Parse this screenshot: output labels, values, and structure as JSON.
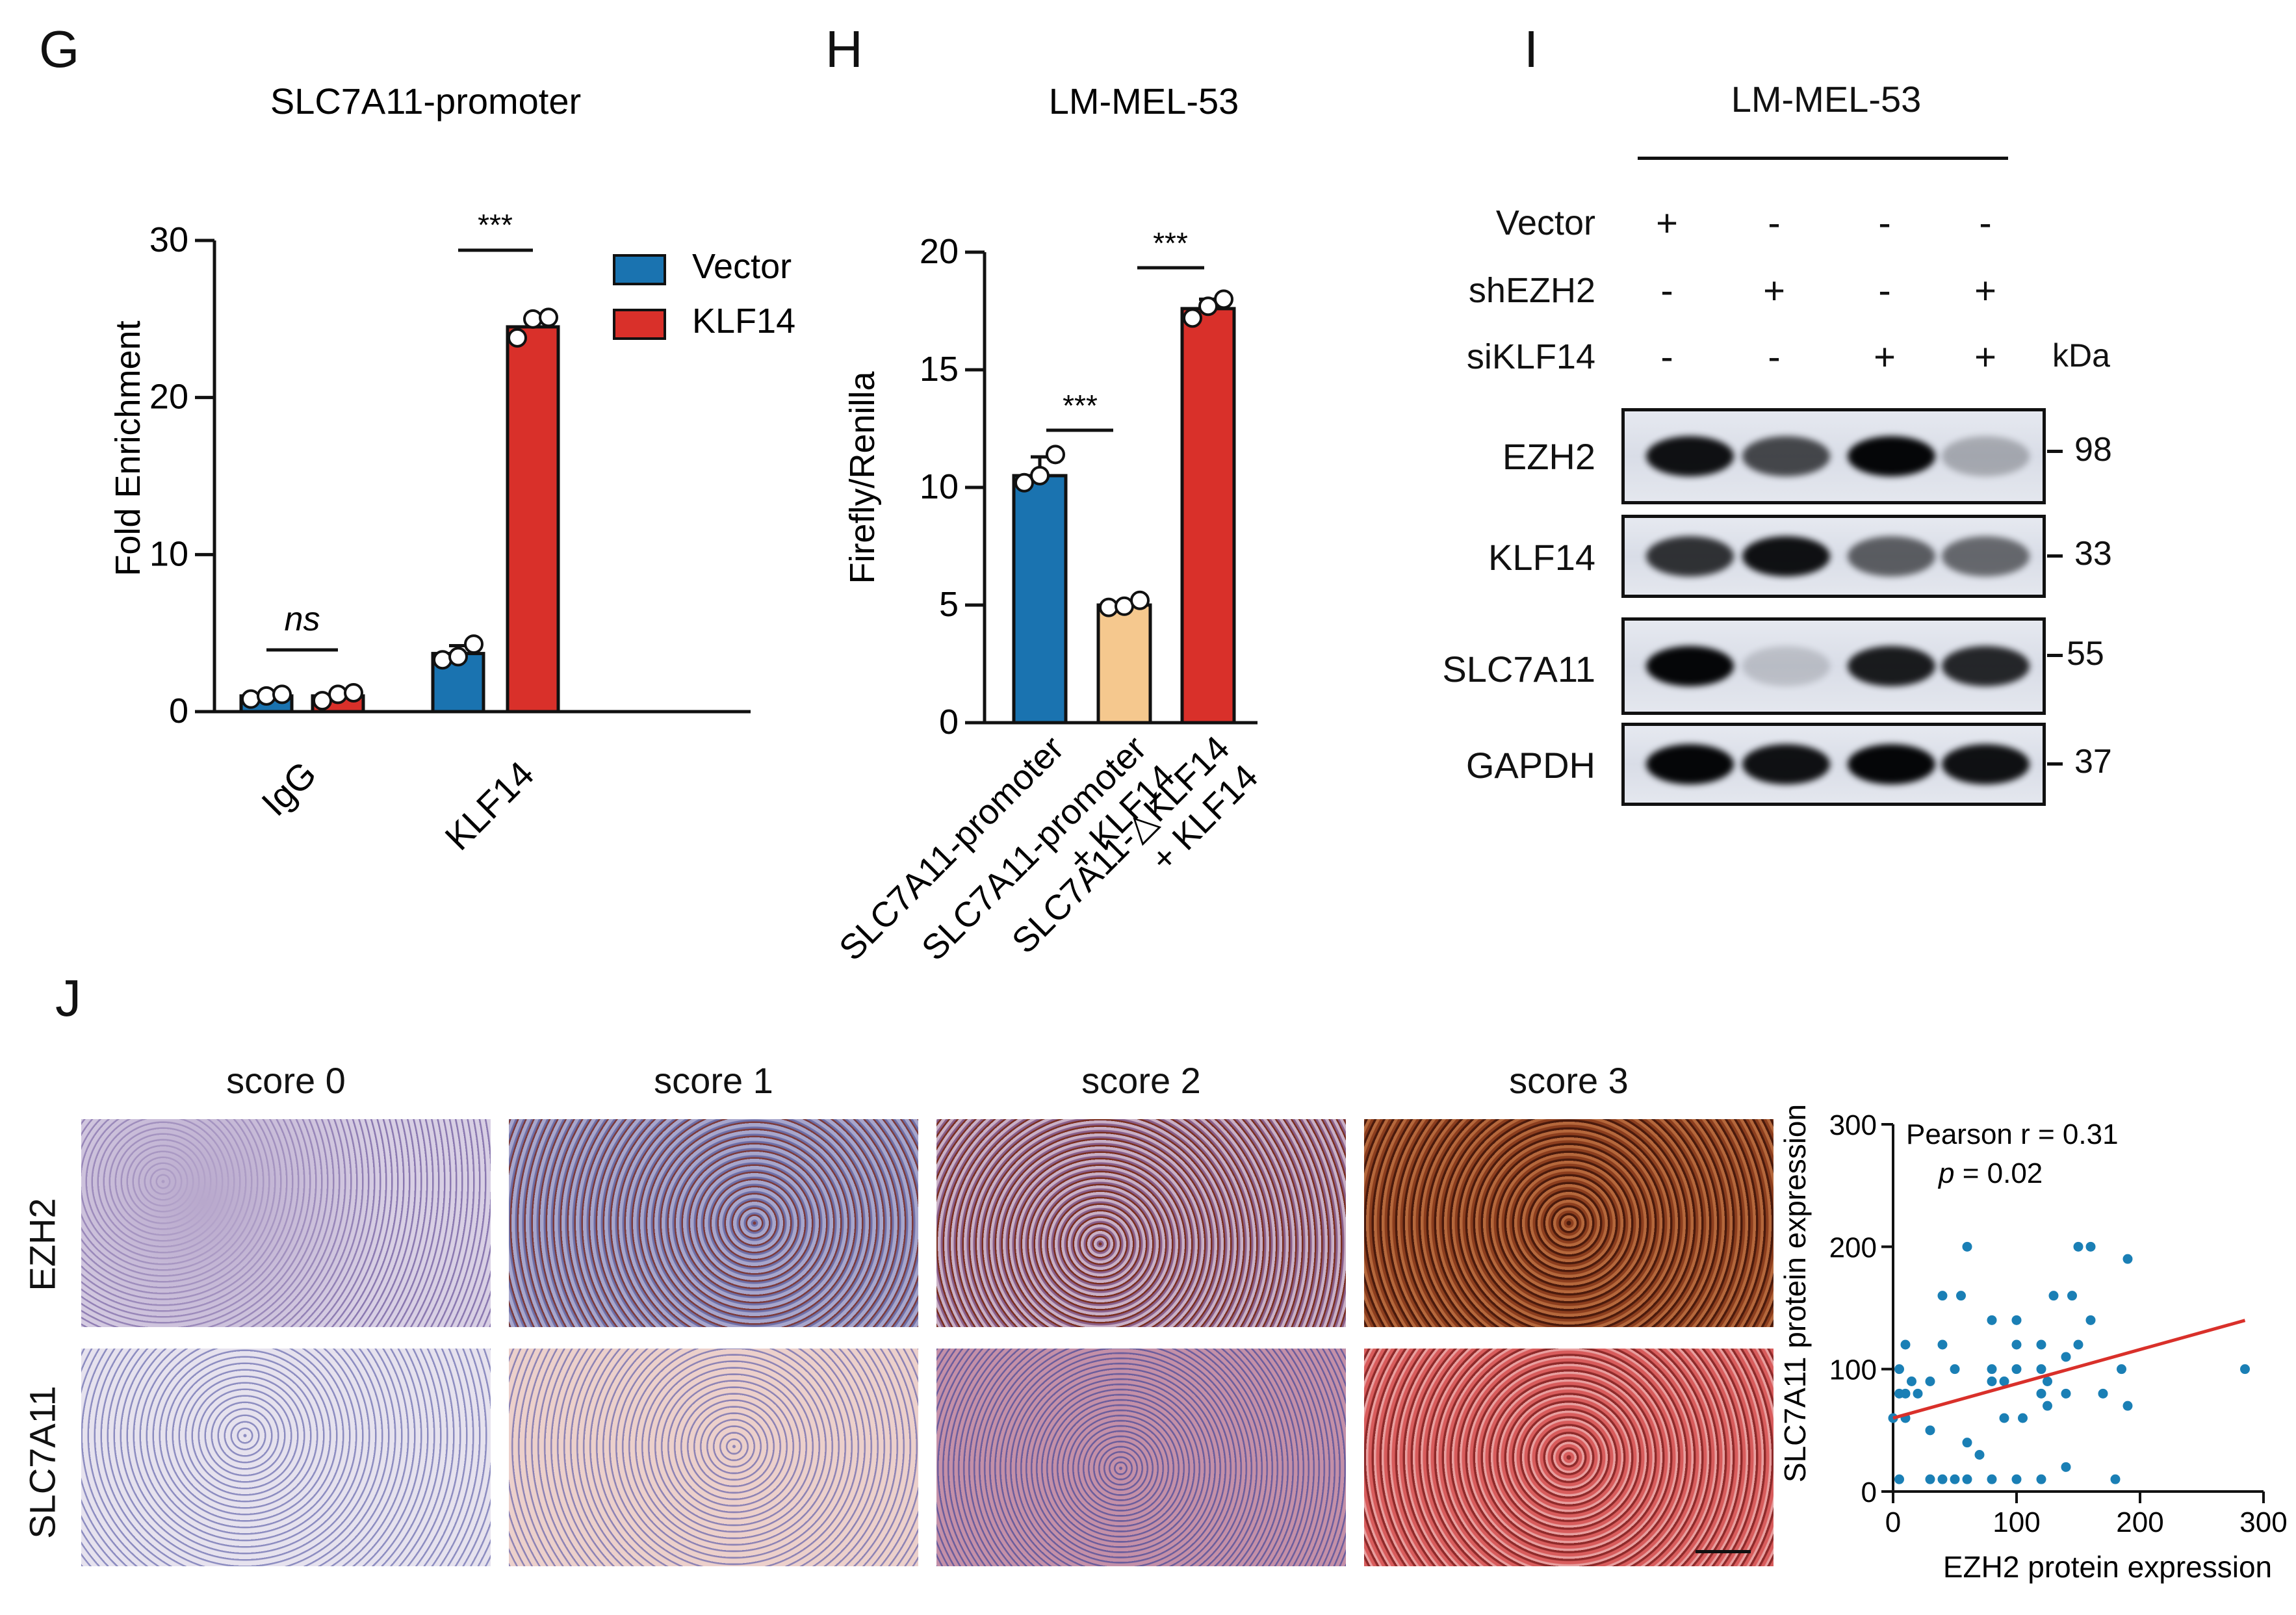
{
  "panel_letters": {
    "G": "G",
    "H": "H",
    "I": "I",
    "J": "J"
  },
  "panel_G": {
    "title": "SLC7A11-promoter",
    "ylabel": "Fold Enrichment",
    "yticks": [
      "0",
      "10",
      "20",
      "30"
    ],
    "categories": [
      "IgG",
      "KLF14"
    ],
    "legend": [
      "Vector",
      "KLF14"
    ],
    "significance": [
      "ns",
      "***"
    ]
  },
  "panel_H": {
    "title": "LM-MEL-53",
    "ylabel": "Firefly/Renilla",
    "yticks": [
      "0",
      "5",
      "10",
      "15",
      "20"
    ],
    "categories": [
      [
        "SLC7A11-promoter"
      ],
      [
        "SLC7A11-promoter",
        "+ KLF14"
      ],
      [
        "SLC7A11-△KLF14",
        "+ KLF14"
      ]
    ],
    "significance": [
      "***",
      "***"
    ]
  },
  "panel_I": {
    "title": "LM-MEL-53",
    "row_labels": [
      "Vector",
      "shEZH2",
      "siKLF14"
    ],
    "signs": [
      [
        "+",
        "-",
        "-",
        "-"
      ],
      [
        "-",
        "+",
        "-",
        "+"
      ],
      [
        "-",
        "-",
        "+",
        "+"
      ]
    ],
    "kda_label": "kDa",
    "proteins": [
      "EZH2",
      "KLF14",
      "SLC7A11",
      "GAPDH"
    ],
    "markers": [
      "98",
      "33",
      "55",
      "37"
    ],
    "band_intensity": [
      [
        0.95,
        0.7,
        1.0,
        0.25
      ],
      [
        0.8,
        0.95,
        0.6,
        0.55
      ],
      [
        1.0,
        0.15,
        0.9,
        0.85
      ],
      [
        1.0,
        0.95,
        1.0,
        0.95
      ]
    ]
  },
  "panel_J": {
    "score_labels": [
      "score 0",
      "score 1",
      "score 2",
      "score 3"
    ],
    "row_labels": [
      "EZH2",
      "SLC7A11"
    ],
    "scatter_annotation": [
      "Pearson r = 0.31",
      "p = 0.02"
    ],
    "xlabel": "EZH2 protein expression",
    "ylabel": "SLC7A11 protein expression",
    "xticks": [
      "0",
      "100",
      "200",
      "300"
    ],
    "yticks": [
      "0",
      "100",
      "200",
      "300"
    ]
  },
  "colors": {
    "vector_blue": "#1a73b0",
    "klf14_red": "#d9302a",
    "peach": "#f5c88e",
    "regression_red": "#d9302a",
    "scatter_point": "#1a7fb5"
  },
  "chart_data": [
    {
      "type": "bar",
      "title": "SLC7A11-promoter",
      "ylabel": "Fold Enrichment",
      "ylim": [
        0,
        30
      ],
      "categories": [
        "IgG",
        "KLF14"
      ],
      "series": [
        {
          "name": "Vector",
          "values": [
            1.0,
            3.7
          ],
          "errors": [
            0.1,
            0.5
          ],
          "points": [
            [
              0.8,
              1.0,
              1.1
            ],
            [
              3.3,
              3.5,
              4.3
            ]
          ]
        },
        {
          "name": "KLF14",
          "values": [
            1.0,
            24.5
          ],
          "errors": [
            0.2,
            0.6
          ],
          "points": [
            [
              0.7,
              1.1,
              1.2
            ],
            [
              23.8,
              25.0,
              25.1
            ]
          ]
        }
      ]
    },
    {
      "type": "bar",
      "title": "LM-MEL-53",
      "ylabel": "Firefly/Renilla",
      "ylim": [
        0,
        20
      ],
      "categories": [
        "SLC7A11-promoter",
        "SLC7A11-promoter + KLF14",
        "SLC7A11-△KLF14 + KLF14"
      ],
      "values": [
        10.5,
        5.0,
        17.6
      ],
      "errors": [
        0.8,
        0.1,
        0.4
      ],
      "points": [
        [
          10.2,
          10.5,
          11.4
        ],
        [
          4.9,
          4.95,
          5.2
        ],
        [
          17.2,
          17.7,
          18.0
        ]
      ]
    },
    {
      "type": "scatter",
      "xlabel": "EZH2 protein expression",
      "ylabel": "SLC7A11 protein expression",
      "xlim": [
        0,
        300
      ],
      "ylim": [
        0,
        300
      ],
      "points": [
        [
          0,
          60
        ],
        [
          5,
          80
        ],
        [
          5,
          10
        ],
        [
          5,
          100
        ],
        [
          10,
          60
        ],
        [
          10,
          80
        ],
        [
          10,
          120
        ],
        [
          15,
          90
        ],
        [
          20,
          80
        ],
        [
          30,
          10
        ],
        [
          30,
          50
        ],
        [
          30,
          90
        ],
        [
          40,
          10
        ],
        [
          40,
          120
        ],
        [
          40,
          160
        ],
        [
          50,
          100
        ],
        [
          50,
          10
        ],
        [
          55,
          160
        ],
        [
          60,
          10
        ],
        [
          60,
          40
        ],
        [
          60,
          200
        ],
        [
          70,
          30
        ],
        [
          80,
          10
        ],
        [
          80,
          90
        ],
        [
          80,
          100
        ],
        [
          80,
          140
        ],
        [
          90,
          60
        ],
        [
          90,
          90
        ],
        [
          100,
          10
        ],
        [
          100,
          100
        ],
        [
          100,
          120
        ],
        [
          100,
          140
        ],
        [
          105,
          60
        ],
        [
          120,
          10
        ],
        [
          120,
          80
        ],
        [
          120,
          100
        ],
        [
          120,
          120
        ],
        [
          125,
          70
        ],
        [
          125,
          90
        ],
        [
          130,
          160
        ],
        [
          140,
          20
        ],
        [
          140,
          80
        ],
        [
          140,
          110
        ],
        [
          145,
          160
        ],
        [
          150,
          200
        ],
        [
          150,
          120
        ],
        [
          160,
          140
        ],
        [
          160,
          200
        ],
        [
          170,
          80
        ],
        [
          180,
          10
        ],
        [
          185,
          100
        ],
        [
          190,
          190
        ],
        [
          190,
          70
        ],
        [
          285,
          100
        ]
      ],
      "fit": {
        "slope": 0.28,
        "intercept": 60
      },
      "annotation": "Pearson r = 0.31, p = 0.02"
    }
  ]
}
